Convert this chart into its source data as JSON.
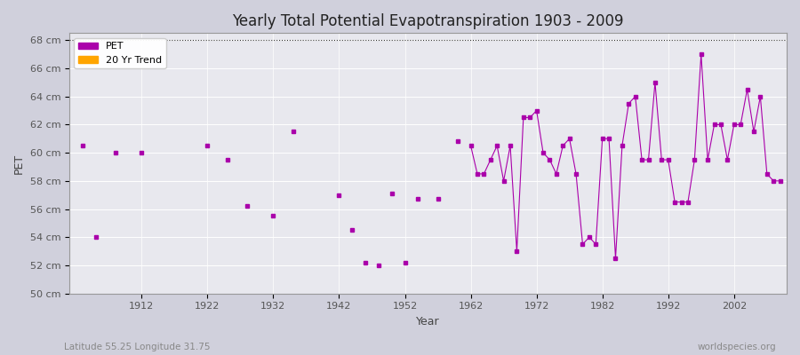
{
  "title": "Yearly Total Potential Evapotranspiration 1903 - 2009",
  "xlabel": "Year",
  "ylabel": "PET",
  "lat_lon_label": "Latitude 55.25 Longitude 31.75",
  "watermark": "worldspecies.org",
  "ylim": [
    50,
    68.5
  ],
  "xlim": [
    1901,
    2010
  ],
  "yticks": [
    50,
    52,
    54,
    56,
    58,
    60,
    62,
    64,
    66,
    68
  ],
  "ytick_labels": [
    "50 cm",
    "52 cm",
    "54 cm",
    "56 cm",
    "58 cm",
    "60 cm",
    "62 cm",
    "64 cm",
    "66 cm",
    "68 cm"
  ],
  "xticks": [
    1912,
    1922,
    1932,
    1942,
    1952,
    1962,
    1972,
    1982,
    1992,
    2002
  ],
  "line_color": "#aa00aa",
  "marker_color": "#aa00aa",
  "trend_color": "#FFA500",
  "bg_color": "#e8e8ee",
  "fig_color": "#d0d0dc",
  "grid_color": "#ffffff",
  "years": [
    1903,
    1905,
    1908,
    1912,
    1922,
    1925,
    1928,
    1932,
    1935,
    1942,
    1944,
    1946,
    1948,
    1950,
    1952,
    1954,
    1957,
    1960,
    1962,
    1963,
    1964,
    1965,
    1966,
    1967,
    1968,
    1969,
    1970,
    1971,
    1972,
    1973,
    1974,
    1975,
    1976,
    1977,
    1978,
    1979,
    1980,
    1981,
    1982,
    1983,
    1984,
    1985,
    1986,
    1987,
    1988,
    1989,
    1990,
    1991,
    1992,
    1993,
    1994,
    1995,
    1996,
    1997,
    1998,
    1999,
    2000,
    2001,
    2002,
    2003,
    2004,
    2005,
    2006,
    2007,
    2008,
    2009
  ],
  "values": [
    60.5,
    54.0,
    60.0,
    60.0,
    60.5,
    59.5,
    56.2,
    55.5,
    61.5,
    57.0,
    54.5,
    52.2,
    52.0,
    57.1,
    52.2,
    56.7,
    56.7,
    60.8,
    60.5,
    58.5,
    58.5,
    59.5,
    60.5,
    58.0,
    60.5,
    53.0,
    62.5,
    62.5,
    63.0,
    60.0,
    59.5,
    58.5,
    60.5,
    61.0,
    58.5,
    53.5,
    54.0,
    53.5,
    61.0,
    61.0,
    52.5,
    60.5,
    63.5,
    64.0,
    59.5,
    59.5,
    65.0,
    59.5,
    59.5,
    56.5,
    56.5,
    56.5,
    59.5,
    67.0,
    59.5,
    62.0,
    62.0,
    59.5,
    62.0,
    62.0,
    64.5,
    61.5,
    64.0,
    58.5,
    58.0,
    58.0
  ],
  "all_years": [
    1903,
    1904,
    1905,
    1906,
    1907,
    1908,
    1909,
    1910,
    1911,
    1912,
    1913,
    1914,
    1915,
    1916,
    1917,
    1918,
    1919,
    1920,
    1921,
    1922,
    1923,
    1924,
    1925,
    1926,
    1927,
    1928,
    1929,
    1930,
    1931,
    1932,
    1933,
    1934,
    1935,
    1936,
    1937,
    1938,
    1939,
    1940,
    1941,
    1942,
    1943,
    1944,
    1945,
    1946,
    1947,
    1948,
    1949,
    1950,
    1951,
    1952,
    1953,
    1954,
    1955,
    1956,
    1957,
    1958,
    1959,
    1960,
    1961,
    1962,
    1963,
    1964,
    1965,
    1966,
    1967,
    1968,
    1969,
    1970,
    1971,
    1972,
    1973,
    1974,
    1975,
    1976,
    1977,
    1978,
    1979,
    1980,
    1981,
    1982,
    1983,
    1984,
    1985,
    1986,
    1987,
    1988,
    1989,
    1990,
    1991,
    1992,
    1993,
    1994,
    1995,
    1996,
    1997,
    1998,
    1999,
    2000,
    2001,
    2002,
    2003,
    2004,
    2005,
    2006,
    2007,
    2008,
    2009
  ],
  "all_values": [
    60.5,
    null,
    54.0,
    null,
    null,
    60.0,
    null,
    null,
    null,
    60.0,
    null,
    null,
    null,
    null,
    null,
    null,
    null,
    null,
    null,
    60.5,
    null,
    null,
    59.5,
    null,
    null,
    56.2,
    null,
    null,
    null,
    55.5,
    null,
    null,
    61.5,
    null,
    null,
    null,
    null,
    null,
    null,
    57.0,
    null,
    54.5,
    null,
    52.2,
    null,
    52.0,
    null,
    57.1,
    null,
    52.2,
    null,
    56.7,
    null,
    null,
    56.7,
    null,
    null,
    60.8,
    null,
    60.5,
    58.5,
    58.5,
    59.5,
    60.5,
    58.0,
    60.5,
    53.0,
    62.5,
    62.5,
    63.0,
    60.0,
    59.5,
    58.5,
    60.5,
    61.0,
    58.5,
    53.5,
    54.0,
    53.5,
    61.0,
    61.0,
    52.5,
    60.5,
    63.5,
    64.0,
    59.5,
    59.5,
    65.0,
    59.5,
    59.5,
    56.5,
    56.5,
    56.5,
    59.5,
    67.0,
    59.5,
    62.0,
    62.0,
    59.5,
    62.0,
    62.0,
    64.5,
    61.5,
    64.0,
    58.5,
    58.0,
    58.0
  ]
}
